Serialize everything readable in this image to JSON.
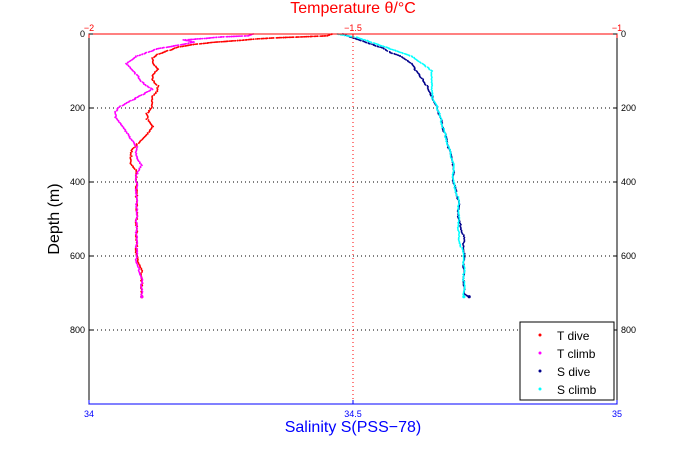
{
  "chart_data": {
    "type": "scatter",
    "title": "",
    "top_axis": {
      "label": "Temperature θ/°C",
      "range": [
        -2,
        -1
      ],
      "ticks": [
        -2,
        -1.5,
        -1
      ],
      "tick_labels": [
        "−2",
        "−1.5",
        "−1"
      ],
      "color": "#ff0000"
    },
    "bottom_axis": {
      "label": "Salinity S(PSS−78)",
      "range": [
        34,
        35
      ],
      "ticks": [
        34,
        34.5,
        35
      ],
      "tick_labels": [
        "34",
        "34.5",
        "35"
      ],
      "color": "#0000ff"
    },
    "y_axis": {
      "label": "Depth (m)",
      "range": [
        0,
        1000
      ],
      "reversed": true,
      "ticks": [
        0,
        200,
        400,
        600,
        800
      ],
      "tick_labels": [
        "0",
        "200",
        "400",
        "600",
        "800"
      ]
    },
    "grid": "dotted at 200 m depth intervals and at the midpoint (S=34.5 / θ=-1.5)",
    "legend_position": "bottom-right",
    "series": [
      {
        "name": "T dive",
        "axis": "top",
        "color": "#ff0000",
        "points": [
          [
            -1.54,
            0
          ],
          [
            -1.55,
            5
          ],
          [
            -1.6,
            8
          ],
          [
            -1.64,
            10
          ],
          [
            -1.68,
            13
          ],
          [
            -1.72,
            18
          ],
          [
            -1.76,
            22
          ],
          [
            -1.8,
            28
          ],
          [
            -1.83,
            35
          ],
          [
            -1.85,
            45
          ],
          [
            -1.87,
            55
          ],
          [
            -1.88,
            65
          ],
          [
            -1.88,
            80
          ],
          [
            -1.87,
            95
          ],
          [
            -1.88,
            110
          ],
          [
            -1.88,
            125
          ],
          [
            -1.87,
            140
          ],
          [
            -1.87,
            155
          ],
          [
            -1.88,
            170
          ],
          [
            -1.88,
            185
          ],
          [
            -1.88,
            200
          ],
          [
            -1.89,
            215
          ],
          [
            -1.89,
            230
          ],
          [
            -1.88,
            250
          ],
          [
            -1.89,
            270
          ],
          [
            -1.9,
            285
          ],
          [
            -1.91,
            300
          ],
          [
            -1.92,
            315
          ],
          [
            -1.92,
            330
          ],
          [
            -1.92,
            350
          ],
          [
            -1.91,
            370
          ],
          [
            -1.91,
            390
          ],
          [
            -1.91,
            410
          ],
          [
            -1.91,
            440
          ],
          [
            -1.91,
            480
          ],
          [
            -1.91,
            520
          ],
          [
            -1.91,
            560
          ],
          [
            -1.91,
            600
          ],
          [
            -1.9,
            640
          ],
          [
            -1.9,
            680
          ],
          [
            -1.9,
            710
          ]
        ]
      },
      {
        "name": "T climb",
        "axis": "top",
        "color": "#ff00ff",
        "points": [
          [
            -1.69,
            0
          ],
          [
            -1.7,
            5
          ],
          [
            -1.75,
            8
          ],
          [
            -1.78,
            12
          ],
          [
            -1.82,
            16
          ],
          [
            -1.8,
            22
          ],
          [
            -1.83,
            30
          ],
          [
            -1.87,
            40
          ],
          [
            -1.89,
            50
          ],
          [
            -1.91,
            60
          ],
          [
            -1.92,
            70
          ],
          [
            -1.93,
            80
          ],
          [
            -1.92,
            95
          ],
          [
            -1.91,
            110
          ],
          [
            -1.9,
            130
          ],
          [
            -1.88,
            150
          ],
          [
            -1.9,
            165
          ],
          [
            -1.92,
            180
          ],
          [
            -1.94,
            195
          ],
          [
            -1.95,
            210
          ],
          [
            -1.95,
            225
          ],
          [
            -1.94,
            245
          ],
          [
            -1.93,
            265
          ],
          [
            -1.92,
            285
          ],
          [
            -1.91,
            305
          ],
          [
            -1.91,
            330
          ],
          [
            -1.9,
            355
          ],
          [
            -1.91,
            380
          ],
          [
            -1.91,
            420
          ],
          [
            -1.91,
            460
          ],
          [
            -1.91,
            500
          ],
          [
            -1.91,
            540
          ],
          [
            -1.91,
            580
          ],
          [
            -1.91,
            620
          ],
          [
            -1.9,
            660
          ],
          [
            -1.9,
            690
          ],
          [
            -1.9,
            710
          ]
        ]
      },
      {
        "name": "S dive",
        "axis": "bottom",
        "color": "#00008b",
        "points": [
          [
            34.48,
            0
          ],
          [
            34.49,
            5
          ],
          [
            34.5,
            10
          ],
          [
            34.52,
            20
          ],
          [
            34.54,
            30
          ],
          [
            34.56,
            40
          ],
          [
            34.57,
            50
          ],
          [
            34.59,
            60
          ],
          [
            34.6,
            70
          ],
          [
            34.61,
            80
          ],
          [
            34.62,
            100
          ],
          [
            34.63,
            120
          ],
          [
            34.64,
            140
          ],
          [
            34.65,
            170
          ],
          [
            34.66,
            200
          ],
          [
            34.67,
            250
          ],
          [
            34.68,
            300
          ],
          [
            34.69,
            350
          ],
          [
            34.69,
            400
          ],
          [
            34.7,
            450
          ],
          [
            34.7,
            500
          ],
          [
            34.71,
            550
          ],
          [
            34.71,
            600
          ],
          [
            34.71,
            650
          ],
          [
            34.71,
            700
          ],
          [
            34.72,
            710
          ]
        ]
      },
      {
        "name": "S climb",
        "axis": "bottom",
        "color": "#00ffff",
        "points": [
          [
            34.47,
            0
          ],
          [
            34.49,
            5
          ],
          [
            34.51,
            10
          ],
          [
            34.53,
            20
          ],
          [
            34.55,
            30
          ],
          [
            34.57,
            40
          ],
          [
            34.59,
            50
          ],
          [
            34.61,
            60
          ],
          [
            34.62,
            70
          ],
          [
            34.63,
            80
          ],
          [
            34.64,
            90
          ],
          [
            34.65,
            100
          ],
          [
            34.65,
            120
          ],
          [
            34.65,
            140
          ],
          [
            34.65,
            170
          ],
          [
            34.66,
            200
          ],
          [
            34.67,
            250
          ],
          [
            34.68,
            300
          ],
          [
            34.69,
            350
          ],
          [
            34.69,
            400
          ],
          [
            34.7,
            450
          ],
          [
            34.7,
            500
          ],
          [
            34.7,
            550
          ],
          [
            34.71,
            600
          ],
          [
            34.71,
            650
          ],
          [
            34.71,
            700
          ],
          [
            34.71,
            710
          ]
        ]
      }
    ]
  }
}
